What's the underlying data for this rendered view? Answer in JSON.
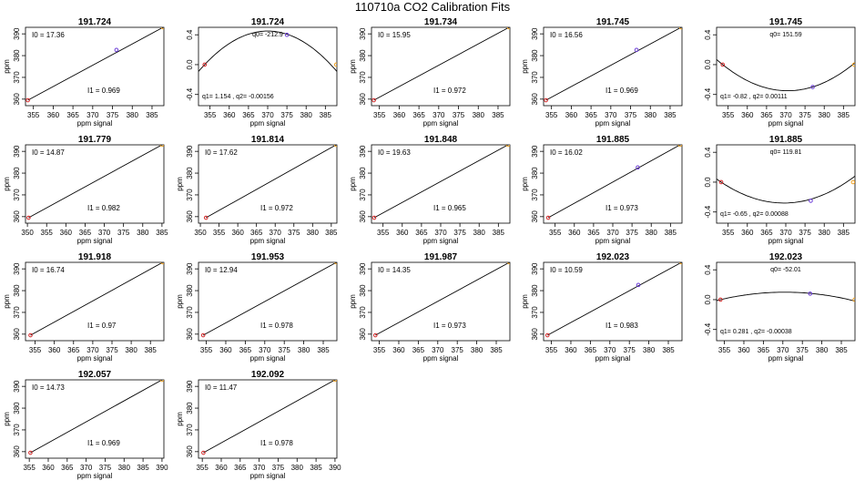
{
  "page_title": "110710a   CO2 Calibration Fits",
  "xlabel_text": "ppm signal",
  "ylabel_text": "ppm",
  "colors": {
    "axis": "#000000",
    "fit_line": "#000000",
    "low_point": "#d62728",
    "mid_point": "#6a3bd6",
    "high_point": "#f0a020"
  },
  "chart_data": [
    {
      "type": "line",
      "title": "191.724",
      "xlabel": "ppm signal",
      "ylabel": "ppm",
      "xlim": [
        353,
        388
      ],
      "ylim": [
        357,
        393
      ],
      "xticks": [
        355,
        360,
        365,
        370,
        375,
        380,
        385
      ],
      "yticks": [
        360,
        370,
        380,
        390
      ],
      "points": [
        {
          "x": 353.6,
          "y": 359.5,
          "role": "low"
        },
        {
          "x": 376.0,
          "y": 382.6,
          "role": "mid"
        },
        {
          "x": 387.8,
          "y": 393.0,
          "role": "high"
        }
      ],
      "line": {
        "x": [
          353.6,
          387.8
        ],
        "y": [
          359.5,
          393.0
        ]
      },
      "annotations": [
        {
          "text": "I0 =  17.36",
          "pos": "top-left"
        },
        {
          "text": "I1 =  0.969",
          "pos": "bottom-right"
        }
      ]
    },
    {
      "type": "line",
      "title": "191.724",
      "xlabel": "ppm signal",
      "ylabel": "",
      "xlim": [
        352,
        388
      ],
      "ylim": [
        -0.55,
        0.5
      ],
      "xticks": [
        355,
        360,
        365,
        370,
        375,
        380,
        385
      ],
      "yticks": [
        -0.4,
        0.0,
        0.4
      ],
      "points": [
        {
          "x": 353.6,
          "y": 0.0,
          "role": "low"
        },
        {
          "x": 375.0,
          "y": 0.4,
          "role": "mid"
        },
        {
          "x": 387.8,
          "y": 0.0,
          "role": "high"
        }
      ],
      "curve": {
        "x0": 353.6,
        "xmax": 370,
        "yvertex": 0.45,
        "x1": 387.8,
        "y0": 0.0
      },
      "annotations": [
        {
          "text": "q0= -212.9",
          "pos": "top-center"
        },
        {
          "text": "q1= 1.154  ,  q2= -0.00156",
          "pos": "bottom-left"
        }
      ]
    },
    {
      "type": "line",
      "title": "191.734",
      "xlabel": "ppm signal",
      "ylabel": "ppm",
      "xlim": [
        353,
        388
      ],
      "ylim": [
        357,
        393
      ],
      "xticks": [
        355,
        360,
        365,
        370,
        375,
        380,
        385
      ],
      "yticks": [
        360,
        370,
        380,
        390
      ],
      "points": [
        {
          "x": 353.6,
          "y": 359.5,
          "role": "low"
        },
        {
          "x": 387.8,
          "y": 393.0,
          "role": "high"
        }
      ],
      "line": {
        "x": [
          353.6,
          387.8
        ],
        "y": [
          359.5,
          393.0
        ]
      },
      "annotations": [
        {
          "text": "I0 =  15.95",
          "pos": "top-left"
        },
        {
          "text": "I1 =  0.972",
          "pos": "bottom-right"
        }
      ]
    },
    {
      "type": "line",
      "title": "191.745",
      "xlabel": "ppm signal",
      "ylabel": "ppm",
      "xlim": [
        353,
        388
      ],
      "ylim": [
        357,
        393
      ],
      "xticks": [
        355,
        360,
        365,
        370,
        375,
        380,
        385
      ],
      "yticks": [
        360,
        370,
        380,
        390
      ],
      "points": [
        {
          "x": 353.6,
          "y": 359.5,
          "role": "low"
        },
        {
          "x": 376.5,
          "y": 382.6,
          "role": "mid"
        },
        {
          "x": 387.8,
          "y": 393.0,
          "role": "high"
        }
      ],
      "line": {
        "x": [
          353.6,
          387.8
        ],
        "y": [
          359.5,
          393.0
        ]
      },
      "annotations": [
        {
          "text": "I0 =  16.56",
          "pos": "top-left"
        },
        {
          "text": "I1 =  0.969",
          "pos": "bottom-right"
        }
      ]
    },
    {
      "type": "line",
      "title": "191.745",
      "xlabel": "ppm signal",
      "ylabel": "",
      "xlim": [
        352,
        388
      ],
      "ylim": [
        -0.55,
        0.5
      ],
      "xticks": [
        355,
        360,
        365,
        370,
        375,
        380,
        385
      ],
      "yticks": [
        -0.4,
        0.0,
        0.4
      ],
      "points": [
        {
          "x": 353.6,
          "y": 0.0,
          "role": "low"
        },
        {
          "x": 377.0,
          "y": -0.3,
          "role": "mid"
        },
        {
          "x": 387.8,
          "y": 0.0,
          "role": "high"
        }
      ],
      "curve": {
        "x0": 353.6,
        "xmax": 370.5,
        "yvertex": -0.35,
        "x1": 387.8,
        "y0": 0.0
      },
      "annotations": [
        {
          "text": "q0= 151.59",
          "pos": "top-center"
        },
        {
          "text": "q1= -0.82  ,  q2= 0.00111",
          "pos": "bottom-left"
        }
      ]
    },
    {
      "type": "line",
      "title": "191.779",
      "xlabel": "ppm signal",
      "ylabel": "ppm",
      "xlim": [
        349.5,
        385.5
      ],
      "ylim": [
        357,
        393
      ],
      "xticks": [
        350,
        355,
        360,
        365,
        370,
        375,
        380,
        385
      ],
      "yticks": [
        360,
        370,
        380,
        390
      ],
      "points": [
        {
          "x": 350.3,
          "y": 359.5,
          "role": "low"
        },
        {
          "x": 385.0,
          "y": 393.0,
          "role": "high"
        }
      ],
      "line": {
        "x": [
          350.3,
          385.0
        ],
        "y": [
          359.5,
          393.0
        ]
      },
      "annotations": [
        {
          "text": "I0 =  14.87",
          "pos": "top-left"
        },
        {
          "text": "I1 =  0.982",
          "pos": "bottom-right"
        }
      ]
    },
    {
      "type": "line",
      "title": "191.814",
      "xlabel": "ppm signal",
      "ylabel": "ppm",
      "xlim": [
        349.5,
        386.5
      ],
      "ylim": [
        357,
        393
      ],
      "xticks": [
        350,
        355,
        360,
        365,
        370,
        375,
        380,
        385
      ],
      "yticks": [
        360,
        370,
        380,
        390
      ],
      "points": [
        {
          "x": 351.5,
          "y": 359.5,
          "role": "low"
        },
        {
          "x": 386.3,
          "y": 393.0,
          "role": "high"
        }
      ],
      "line": {
        "x": [
          351.5,
          386.3
        ],
        "y": [
          359.5,
          393.0
        ]
      },
      "annotations": [
        {
          "text": "I0 =  17.62",
          "pos": "top-left"
        },
        {
          "text": "I1 =  0.972",
          "pos": "bottom-right"
        }
      ]
    },
    {
      "type": "line",
      "title": "191.848",
      "xlabel": "ppm signal",
      "ylabel": "ppm",
      "xlim": [
        352,
        388
      ],
      "ylim": [
        357,
        393
      ],
      "xticks": [
        355,
        360,
        365,
        370,
        375,
        380,
        385
      ],
      "yticks": [
        360,
        370,
        380,
        390
      ],
      "points": [
        {
          "x": 352.7,
          "y": 359.5,
          "role": "low"
        },
        {
          "x": 387.5,
          "y": 393.0,
          "role": "high"
        }
      ],
      "line": {
        "x": [
          352.7,
          387.5
        ],
        "y": [
          359.5,
          393.0
        ]
      },
      "annotations": [
        {
          "text": "I0 =  19.63",
          "pos": "top-left"
        },
        {
          "text": "I1 =  0.965",
          "pos": "bottom-right"
        }
      ]
    },
    {
      "type": "line",
      "title": "191.885",
      "xlabel": "ppm signal",
      "ylabel": "ppm",
      "xlim": [
        352,
        388
      ],
      "ylim": [
        357,
        393
      ],
      "xticks": [
        355,
        360,
        365,
        370,
        375,
        380,
        385
      ],
      "yticks": [
        360,
        370,
        380,
        390
      ],
      "points": [
        {
          "x": 353.2,
          "y": 359.5,
          "role": "low"
        },
        {
          "x": 376.5,
          "y": 382.6,
          "role": "mid"
        },
        {
          "x": 387.5,
          "y": 393.0,
          "role": "high"
        }
      ],
      "line": {
        "x": [
          353.2,
          387.5
        ],
        "y": [
          359.5,
          393.0
        ]
      },
      "annotations": [
        {
          "text": "I0 =  16.02",
          "pos": "top-left"
        },
        {
          "text": "I1 =  0.973",
          "pos": "bottom-right"
        }
      ]
    },
    {
      "type": "line",
      "title": "191.885",
      "xlabel": "ppm signal",
      "ylabel": "",
      "xlim": [
        352,
        388
      ],
      "ylim": [
        -0.55,
        0.5
      ],
      "xticks": [
        355,
        360,
        365,
        370,
        375,
        380,
        385
      ],
      "yticks": [
        -0.4,
        0.0,
        0.4
      ],
      "points": [
        {
          "x": 353.2,
          "y": 0.0,
          "role": "low"
        },
        {
          "x": 376.5,
          "y": -0.25,
          "role": "mid"
        },
        {
          "x": 387.5,
          "y": 0.0,
          "role": "high"
        }
      ],
      "curve": {
        "x0": 353.2,
        "xmax": 369.5,
        "yvertex": -0.28,
        "x1": 387.5,
        "y0": 0.0
      },
      "annotations": [
        {
          "text": "q0= 119.81",
          "pos": "top-center"
        },
        {
          "text": "q1= -0.65  ,  q2= 0.00088",
          "pos": "bottom-left"
        }
      ]
    },
    {
      "type": "line",
      "title": "191.918",
      "xlabel": "ppm signal",
      "ylabel": "ppm",
      "xlim": [
        352.5,
        388.5
      ],
      "ylim": [
        357,
        393
      ],
      "xticks": [
        355,
        360,
        365,
        370,
        375,
        380,
        385
      ],
      "yticks": [
        360,
        370,
        380,
        390
      ],
      "points": [
        {
          "x": 353.8,
          "y": 359.5,
          "role": "low"
        },
        {
          "x": 388.2,
          "y": 393.0,
          "role": "high"
        }
      ],
      "line": {
        "x": [
          353.8,
          388.2
        ],
        "y": [
          359.5,
          393.0
        ]
      },
      "annotations": [
        {
          "text": "I0 =  16.74",
          "pos": "top-left"
        },
        {
          "text": "I1 =  0.97",
          "pos": "bottom-right"
        }
      ]
    },
    {
      "type": "line",
      "title": "191.953",
      "xlabel": "ppm signal",
      "ylabel": "ppm",
      "xlim": [
        353,
        388.5
      ],
      "ylim": [
        357,
        393
      ],
      "xticks": [
        355,
        360,
        365,
        370,
        375,
        380,
        385
      ],
      "yticks": [
        360,
        370,
        380,
        390
      ],
      "points": [
        {
          "x": 354.2,
          "y": 359.5,
          "role": "low"
        },
        {
          "x": 388.4,
          "y": 393.0,
          "role": "high"
        }
      ],
      "line": {
        "x": [
          354.2,
          388.4
        ],
        "y": [
          359.5,
          393.0
        ]
      },
      "annotations": [
        {
          "text": "I0 =  12.94",
          "pos": "top-left"
        },
        {
          "text": "I1 =  0.978",
          "pos": "bottom-right"
        }
      ]
    },
    {
      "type": "line",
      "title": "191.987",
      "xlabel": "ppm signal",
      "ylabel": "ppm",
      "xlim": [
        353,
        388.5
      ],
      "ylim": [
        357,
        393
      ],
      "xticks": [
        355,
        360,
        365,
        370,
        375,
        380,
        385
      ],
      "yticks": [
        360,
        370,
        380,
        390
      ],
      "points": [
        {
          "x": 354.0,
          "y": 359.5,
          "role": "low"
        },
        {
          "x": 388.4,
          "y": 393.0,
          "role": "high"
        }
      ],
      "line": {
        "x": [
          354.0,
          388.4
        ],
        "y": [
          359.5,
          393.0
        ]
      },
      "annotations": [
        {
          "text": "I0 =  14.35",
          "pos": "top-left"
        },
        {
          "text": "I1 =  0.973",
          "pos": "bottom-right"
        }
      ]
    },
    {
      "type": "line",
      "title": "192.023",
      "xlabel": "ppm signal",
      "ylabel": "ppm",
      "xlim": [
        353,
        388.5
      ],
      "ylim": [
        357,
        393
      ],
      "xticks": [
        355,
        360,
        365,
        370,
        375,
        380,
        385
      ],
      "yticks": [
        360,
        370,
        380,
        390
      ],
      "points": [
        {
          "x": 354.0,
          "y": 359.5,
          "role": "low"
        },
        {
          "x": 377.3,
          "y": 382.6,
          "role": "mid"
        },
        {
          "x": 388.4,
          "y": 393.0,
          "role": "high"
        }
      ],
      "line": {
        "x": [
          354.0,
          388.4
        ],
        "y": [
          359.5,
          393.0
        ]
      },
      "annotations": [
        {
          "text": "I0 =  10.59",
          "pos": "top-left"
        },
        {
          "text": "I1 =  0.983",
          "pos": "bottom-right"
        }
      ]
    },
    {
      "type": "line",
      "title": "192.023",
      "xlabel": "ppm signal",
      "ylabel": "",
      "xlim": [
        353,
        388.5
      ],
      "ylim": [
        -0.55,
        0.5
      ],
      "xticks": [
        355,
        360,
        365,
        370,
        375,
        380,
        385
      ],
      "yticks": [
        -0.4,
        0.0,
        0.4
      ],
      "points": [
        {
          "x": 354.0,
          "y": 0.0,
          "role": "low"
        },
        {
          "x": 377.0,
          "y": 0.08,
          "role": "mid"
        },
        {
          "x": 388.4,
          "y": 0.0,
          "role": "high"
        }
      ],
      "curve": {
        "x0": 354.0,
        "xmax": 370.5,
        "yvertex": 0.1,
        "x1": 388.4,
        "y0": 0.0
      },
      "annotations": [
        {
          "text": "q0= -52.01",
          "pos": "top-center"
        },
        {
          "text": "q1= 0.281  ,  q2= -0.00038",
          "pos": "bottom-left"
        }
      ]
    },
    {
      "type": "line",
      "title": "192.057",
      "xlabel": "ppm signal",
      "ylabel": "ppm",
      "xlim": [
        354,
        390.5
      ],
      "ylim": [
        357,
        393
      ],
      "xticks": [
        355,
        360,
        365,
        370,
        375,
        380,
        385,
        390
      ],
      "yticks": [
        360,
        370,
        380,
        390
      ],
      "points": [
        {
          "x": 355.3,
          "y": 359.5,
          "role": "low"
        },
        {
          "x": 390.0,
          "y": 393.0,
          "role": "high"
        }
      ],
      "line": {
        "x": [
          355.3,
          390.0
        ],
        "y": [
          359.5,
          393.0
        ]
      },
      "annotations": [
        {
          "text": "I0 =  14.73",
          "pos": "top-left"
        },
        {
          "text": "I1 =  0.969",
          "pos": "bottom-right"
        }
      ]
    },
    {
      "type": "line",
      "title": "192.092",
      "xlabel": "ppm signal",
      "ylabel": "ppm",
      "xlim": [
        354,
        390.5
      ],
      "ylim": [
        357,
        393
      ],
      "xticks": [
        355,
        360,
        365,
        370,
        375,
        380,
        385,
        390
      ],
      "yticks": [
        360,
        370,
        380,
        390
      ],
      "points": [
        {
          "x": 355.3,
          "y": 359.5,
          "role": "low"
        },
        {
          "x": 390.0,
          "y": 393.0,
          "role": "high"
        }
      ],
      "line": {
        "x": [
          355.3,
          390.0
        ],
        "y": [
          359.5,
          393.0
        ]
      },
      "annotations": [
        {
          "text": "I0 =  11.47",
          "pos": "top-left"
        },
        {
          "text": "I1 =  0.978",
          "pos": "bottom-right"
        }
      ]
    }
  ]
}
